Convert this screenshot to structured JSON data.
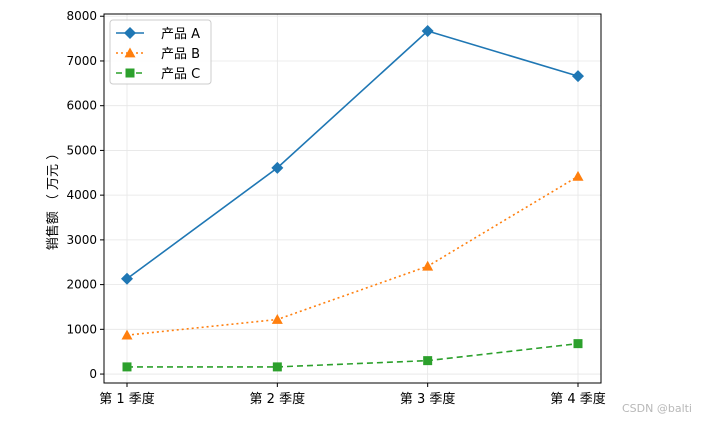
{
  "chart_data": {
    "type": "line",
    "title": "",
    "xlabel": "",
    "ylabel": "销售额 （ 万元 ）",
    "categories": [
      "第 1 季度",
      "第 2 季度",
      "第 3 季度",
      "第 4 季度"
    ],
    "ylim": [
      -200,
      8050
    ],
    "yticks": [
      0,
      1000,
      2000,
      3000,
      4000,
      5000,
      6000,
      7000,
      8000
    ],
    "grid": true,
    "legend_position": "upper-left",
    "series": [
      {
        "name": "产品 A",
        "values": [
          2130,
          4610,
          7670,
          6660
        ],
        "color": "#1f77b4",
        "marker": "diamond",
        "line_style": "solid"
      },
      {
        "name": "产品 B",
        "values": [
          870,
          1220,
          2410,
          4420
        ],
        "color": "#ff7f0e",
        "marker": "triangle",
        "line_style": "dotted"
      },
      {
        "name": "产品 C",
        "values": [
          160,
          160,
          300,
          680
        ],
        "color": "#2ca02c",
        "marker": "square",
        "line_style": "dashed"
      }
    ]
  },
  "watermark": "CSDN @balti"
}
